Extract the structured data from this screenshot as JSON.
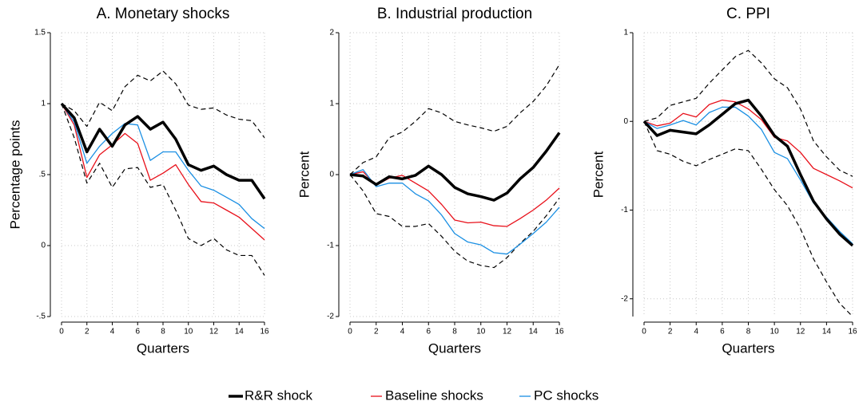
{
  "chart_data": [
    {
      "type": "line",
      "title": "A. Monetary shocks",
      "xlabel": "Quarters",
      "ylabel": "Percentage points",
      "x": [
        0,
        1,
        2,
        3,
        4,
        5,
        6,
        7,
        8,
        9,
        10,
        11,
        12,
        13,
        14,
        15,
        16
      ],
      "xlim": [
        0,
        16
      ],
      "xticks": [
        0,
        2,
        4,
        6,
        8,
        10,
        12,
        14,
        16
      ],
      "ylim": [
        -0.5,
        1.5
      ],
      "yticks": [
        {
          "value": -0.5,
          "label": "-.5"
        },
        0,
        {
          "value": 0.5,
          "label": ".5"
        },
        1,
        1.5
      ],
      "grid": true,
      "legend": "bottom",
      "series": [
        {
          "name": "R&R shock",
          "color": "#000000",
          "width": 3.5,
          "values": [
            1.0,
            0.9,
            0.66,
            0.82,
            0.7,
            0.85,
            0.91,
            0.82,
            0.87,
            0.75,
            0.57,
            0.53,
            0.56,
            0.5,
            0.46,
            0.46,
            0.33
          ]
        },
        {
          "name": "Baseline shocks",
          "color": "#e8101a",
          "width": 1.3,
          "values": [
            1.0,
            0.85,
            0.48,
            0.64,
            0.71,
            0.79,
            0.72,
            0.46,
            0.51,
            0.57,
            0.43,
            0.31,
            0.3,
            0.25,
            0.2,
            0.12,
            0.04
          ]
        },
        {
          "name": "PC shocks",
          "color": "#1a8fe3",
          "width": 1.3,
          "values": [
            1.0,
            0.87,
            0.58,
            0.7,
            0.79,
            0.86,
            0.85,
            0.6,
            0.66,
            0.66,
            0.53,
            0.42,
            0.39,
            0.34,
            0.29,
            0.19,
            0.12
          ]
        },
        {
          "color": "#000000",
          "width": 1.2,
          "dashed": true,
          "values": [
            1.0,
            0.95,
            0.84,
            1.01,
            0.95,
            1.12,
            1.2,
            1.16,
            1.23,
            1.14,
            0.99,
            0.96,
            0.97,
            0.92,
            0.89,
            0.88,
            0.76
          ]
        },
        {
          "color": "#000000",
          "width": 1.2,
          "dashed": true,
          "values": [
            1.0,
            0.76,
            0.44,
            0.58,
            0.41,
            0.54,
            0.55,
            0.41,
            0.43,
            0.25,
            0.05,
            0.0,
            0.05,
            -0.03,
            -0.07,
            -0.07,
            -0.21
          ]
        }
      ]
    },
    {
      "type": "line",
      "title": "B. Industrial production",
      "xlabel": "Quarters",
      "ylabel": "Percent",
      "x": [
        0,
        1,
        2,
        3,
        4,
        5,
        6,
        7,
        8,
        9,
        10,
        11,
        12,
        13,
        14,
        15,
        16
      ],
      "xlim": [
        0,
        16
      ],
      "xticks": [
        0,
        2,
        4,
        6,
        8,
        10,
        12,
        14,
        16
      ],
      "ylim": [
        -2,
        2
      ],
      "yticks": [
        -2,
        -1,
        0,
        1,
        2
      ],
      "grid": true,
      "series": [
        {
          "color": "#000000",
          "width": 3.5,
          "values": [
            0,
            -0.02,
            -0.14,
            -0.03,
            -0.06,
            -0.01,
            0.12,
            0.0,
            -0.18,
            -0.27,
            -0.31,
            -0.36,
            -0.26,
            -0.06,
            0.1,
            0.33,
            0.59
          ]
        },
        {
          "color": "#e8101a",
          "width": 1.3,
          "values": [
            0,
            0.04,
            -0.15,
            -0.05,
            -0.01,
            -0.12,
            -0.23,
            -0.42,
            -0.64,
            -0.68,
            -0.67,
            -0.72,
            -0.73,
            -0.62,
            -0.5,
            -0.36,
            -0.19
          ]
        },
        {
          "color": "#1a8fe3",
          "width": 1.3,
          "values": [
            0,
            0.07,
            -0.17,
            -0.12,
            -0.12,
            -0.27,
            -0.37,
            -0.57,
            -0.83,
            -0.95,
            -0.99,
            -1.1,
            -1.12,
            -0.98,
            -0.83,
            -0.67,
            -0.46
          ]
        },
        {
          "color": "#000000",
          "width": 1.2,
          "dashed": true,
          "values": [
            0,
            0.17,
            0.25,
            0.52,
            0.6,
            0.75,
            0.93,
            0.87,
            0.75,
            0.7,
            0.66,
            0.61,
            0.68,
            0.87,
            1.03,
            1.25,
            1.55
          ]
        },
        {
          "color": "#000000",
          "width": 1.2,
          "dashed": true,
          "values": [
            0,
            -0.23,
            -0.55,
            -0.59,
            -0.73,
            -0.73,
            -0.69,
            -0.87,
            -1.08,
            -1.22,
            -1.28,
            -1.31,
            -1.17,
            -0.97,
            -0.8,
            -0.58,
            -0.33
          ]
        }
      ]
    },
    {
      "type": "line",
      "title": "C. PPI",
      "xlabel": "Quarters",
      "ylabel": "Percent",
      "x": [
        0,
        1,
        2,
        3,
        4,
        5,
        6,
        7,
        8,
        9,
        10,
        11,
        12,
        13,
        14,
        15,
        16
      ],
      "xlim": [
        0,
        16
      ],
      "xticks": [
        0,
        2,
        4,
        6,
        8,
        10,
        12,
        14,
        16
      ],
      "ylim": [
        -2.2,
        1
      ],
      "yticks": [
        -2,
        -1,
        0,
        1
      ],
      "grid": true,
      "series": [
        {
          "color": "#000000",
          "width": 3.5,
          "values": [
            0,
            -0.16,
            -0.1,
            -0.12,
            -0.14,
            -0.04,
            0.08,
            0.2,
            0.24,
            0.06,
            -0.16,
            -0.28,
            -0.6,
            -0.9,
            -1.1,
            -1.27,
            -1.4
          ]
        },
        {
          "color": "#e8101a",
          "width": 1.3,
          "values": [
            0,
            -0.05,
            -0.02,
            0.09,
            0.05,
            0.19,
            0.24,
            0.22,
            0.14,
            0.02,
            -0.18,
            -0.22,
            -0.35,
            -0.53,
            -0.6,
            -0.67,
            -0.75
          ]
        },
        {
          "color": "#1a8fe3",
          "width": 1.3,
          "values": [
            0,
            -0.08,
            -0.04,
            0.01,
            -0.04,
            0.1,
            0.16,
            0.16,
            0.06,
            -0.09,
            -0.35,
            -0.42,
            -0.66,
            -0.92,
            -1.08,
            -1.24,
            -1.38
          ]
        },
        {
          "color": "#000000",
          "width": 1.2,
          "dashed": true,
          "values": [
            0,
            0.04,
            0.18,
            0.22,
            0.26,
            0.43,
            0.58,
            0.73,
            0.8,
            0.66,
            0.48,
            0.38,
            0.14,
            -0.22,
            -0.4,
            -0.55,
            -0.62
          ]
        },
        {
          "color": "#000000",
          "width": 1.2,
          "dashed": true,
          "values": [
            0,
            -0.33,
            -0.37,
            -0.45,
            -0.5,
            -0.43,
            -0.37,
            -0.31,
            -0.33,
            -0.54,
            -0.77,
            -0.95,
            -1.21,
            -1.55,
            -1.81,
            -2.05,
            -2.2
          ]
        }
      ]
    }
  ]
}
